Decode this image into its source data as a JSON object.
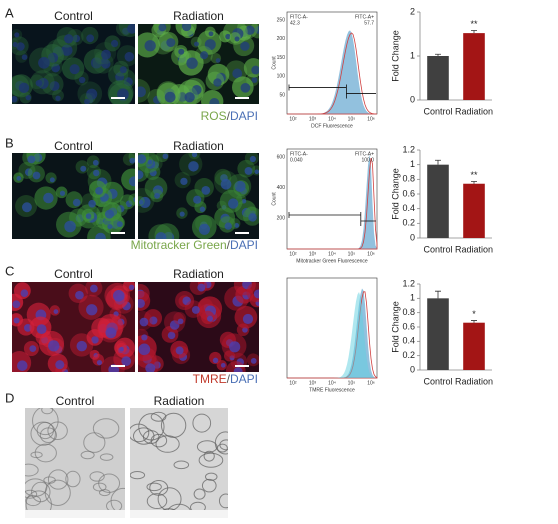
{
  "panels": [
    {
      "label": "A",
      "titles": [
        "Control",
        "Radiation"
      ],
      "caption": [
        {
          "text": "ROS",
          "color": "#79a64a"
        },
        {
          "text": "/",
          "color": "#555555"
        },
        {
          "text": "DAPI",
          "color": "#4a6fb5"
        }
      ],
      "flow": {
        "y_label": "Count",
        "x_label": "DCF Fluorescence",
        "yticks": [
          50,
          100,
          150,
          200,
          250
        ],
        "xticks": [
          "10²",
          "10³",
          "10⁴",
          "10⁵",
          "10⁶"
        ],
        "gates": [
          [
            "FITC-A-",
            "42.3"
          ],
          [
            "FITC-A+",
            "57.7"
          ]
        ]
      }
    },
    {
      "label": "B",
      "titles": [
        "Control",
        "Radiation"
      ],
      "caption": [
        {
          "text": "Mitotracker Green",
          "color": "#79a64a"
        },
        {
          "text": "/",
          "color": "#555555"
        },
        {
          "text": "DAPI",
          "color": "#4a6fb5"
        }
      ],
      "flow": {
        "y_label": "Count",
        "x_label": "Mitotracker Green Fluorescence",
        "yticks": [
          200,
          400,
          600
        ],
        "xticks": [
          "10²",
          "10³",
          "10⁴",
          "10⁵",
          "10⁶"
        ],
        "gates": [
          [
            "FITC-A-",
            "0.040"
          ],
          [
            "FITC-A+",
            "100.0"
          ]
        ]
      }
    },
    {
      "label": "C",
      "titles": [
        "Control",
        "Radiation"
      ],
      "caption": [
        {
          "text": "TMRE",
          "color": "#c0392b"
        },
        {
          "text": "/",
          "color": "#555555"
        },
        {
          "text": "DAPI",
          "color": "#4a6fb5"
        }
      ],
      "flow": {
        "x_label": "TMRE Fluorescence",
        "xticks": [
          "10²",
          "10³",
          "10⁴",
          "10⁵",
          "10⁶"
        ]
      }
    },
    {
      "label": "D",
      "titles": [
        "Control",
        "Radiation"
      ]
    }
  ],
  "chart_data": [
    {
      "type": "bar",
      "y_label": "Fold Change",
      "categories": [
        "Control",
        "Radiation"
      ],
      "values": [
        1.0,
        1.52
      ],
      "errors": [
        0.04,
        0.06
      ],
      "colors": [
        "#404040",
        "#a31515"
      ],
      "ylim": [
        0,
        2
      ],
      "yticks": [
        0,
        1,
        2
      ],
      "annotation": "**"
    },
    {
      "type": "bar",
      "y_label": "Fold Change",
      "categories": [
        "Control",
        "Radiation"
      ],
      "values": [
        1.0,
        0.74
      ],
      "errors": [
        0.06,
        0.03
      ],
      "colors": [
        "#404040",
        "#a31515"
      ],
      "ylim": [
        0,
        1.2
      ],
      "yticks": [
        0,
        0.2,
        0.4,
        0.6,
        0.8,
        1,
        1.2
      ],
      "annotation": "**"
    },
    {
      "type": "bar",
      "y_label": "Fold Change",
      "categories": [
        "Control",
        "Radiation"
      ],
      "values": [
        1.0,
        0.66
      ],
      "errors": [
        0.1,
        0.03
      ],
      "colors": [
        "#404040",
        "#a31515"
      ],
      "ylim": [
        0,
        1.2
      ],
      "yticks": [
        0,
        0.2,
        0.4,
        0.6,
        0.8,
        1,
        1.2
      ],
      "annotation": "*"
    }
  ]
}
